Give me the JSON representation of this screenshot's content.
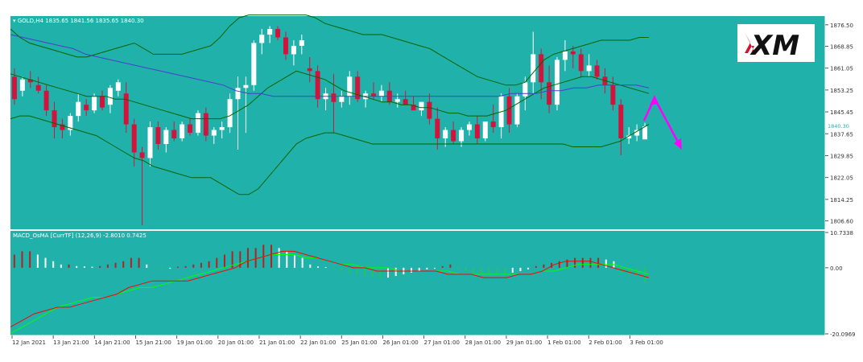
{
  "chart_data": [
    {
      "type": "candlestick",
      "title": "GOLD,H4",
      "ohlc_header": "1835.65 1841.56 1835.65 1840.30",
      "current_price_label": "1840.30",
      "y_ticks": [
        "1876.50",
        "1868.85",
        "1861.05",
        "1853.25",
        "1845.45",
        "1837.65",
        "1829.85",
        "1822.05",
        "1814.25",
        "1806.60"
      ],
      "ylim": [
        1803.6,
        1879.6
      ],
      "x_tick_labels": [
        "12 Jan 2021",
        "13 Jan 21:00",
        "14 Jan 21:00",
        "15 Jan 21:00",
        "19 Jan 01:00",
        "20 Jan 01:00",
        "21 Jan 01:00",
        "22 Jan 01:00",
        "25 Jan 01:00",
        "26 Jan 01:00",
        "27 Jan 01:00",
        "28 Jan 01:00",
        "29 Jan 01:00",
        "1 Feb 01:00",
        "2 Feb 01:00",
        "3 Feb 01:00"
      ],
      "indicator": "Bollinger Bands + moving average",
      "forecast_arrow": "up then down (magenta)",
      "colors": {
        "background": "#20b2aa",
        "bull": "#ffffff",
        "bear": "#d2143c",
        "band": "#006400",
        "ma": "#4b3ccc",
        "arrow": "#ff00ff"
      },
      "candles": [
        [
          1858,
          1861,
          1848,
          1850
        ],
        [
          1853,
          1858,
          1851,
          1857
        ],
        [
          1857,
          1860,
          1854,
          1856
        ],
        [
          1855,
          1858,
          1852,
          1853
        ],
        [
          1853,
          1855,
          1844,
          1846
        ],
        [
          1846,
          1849,
          1836,
          1840
        ],
        [
          1841,
          1843,
          1836,
          1839
        ],
        [
          1839,
          1845,
          1837,
          1844
        ],
        [
          1844,
          1852,
          1842,
          1849
        ],
        [
          1848,
          1850,
          1844,
          1846
        ],
        [
          1846,
          1852,
          1845,
          1851
        ],
        [
          1851,
          1853,
          1846,
          1847
        ],
        [
          1848,
          1855,
          1845,
          1854
        ],
        [
          1853,
          1857,
          1851,
          1856
        ],
        [
          1852,
          1856,
          1838,
          1841
        ],
        [
          1841,
          1843,
          1826,
          1831
        ],
        [
          1831,
          1833,
          1805,
          1829
        ],
        [
          1829,
          1842,
          1826,
          1840
        ],
        [
          1840,
          1842,
          1832,
          1834
        ],
        [
          1834,
          1840,
          1831,
          1839
        ],
        [
          1839,
          1842,
          1835,
          1836
        ],
        [
          1836,
          1842,
          1835,
          1841
        ],
        [
          1841,
          1843,
          1837,
          1838
        ],
        [
          1838,
          1846,
          1837,
          1845
        ],
        [
          1845,
          1847,
          1835,
          1837
        ],
        [
          1837,
          1840,
          1834,
          1839
        ],
        [
          1839,
          1842,
          1836,
          1840
        ],
        [
          1840,
          1852,
          1838,
          1850
        ],
        [
          1850,
          1858,
          1832,
          1854
        ],
        [
          1854,
          1858,
          1838,
          1855
        ],
        [
          1855,
          1871,
          1853,
          1870
        ],
        [
          1870,
          1875,
          1866,
          1873
        ],
        [
          1873,
          1876,
          1870,
          1875
        ],
        [
          1875,
          1876,
          1871,
          1872
        ],
        [
          1872,
          1874,
          1864,
          1866
        ],
        [
          1866,
          1871,
          1862,
          1869
        ],
        [
          1869,
          1873,
          1866,
          1871
        ],
        [
          1861,
          1865,
          1856,
          1860
        ],
        [
          1860,
          1862,
          1847,
          1850
        ],
        [
          1850,
          1854,
          1846,
          1852
        ],
        [
          1852,
          1859,
          1838,
          1849
        ],
        [
          1849,
          1853,
          1847,
          1851
        ],
        [
          1851,
          1860,
          1848,
          1858
        ],
        [
          1858,
          1860,
          1849,
          1850
        ],
        [
          1850,
          1853,
          1847,
          1852
        ],
        [
          1852,
          1856,
          1850,
          1851
        ],
        [
          1851,
          1855,
          1849,
          1853
        ],
        [
          1853,
          1856,
          1848,
          1849
        ],
        [
          1849,
          1852,
          1847,
          1850
        ],
        [
          1850,
          1853,
          1848,
          1848
        ],
        [
          1848,
          1851,
          1846,
          1846
        ],
        [
          1846,
          1849,
          1844,
          1849
        ],
        [
          1849,
          1852,
          1841,
          1843
        ],
        [
          1843,
          1847,
          1832,
          1836
        ],
        [
          1836,
          1840,
          1833,
          1839
        ],
        [
          1839,
          1842,
          1834,
          1835
        ],
        [
          1835,
          1840,
          1833,
          1839
        ],
        [
          1839,
          1842,
          1837,
          1841
        ],
        [
          1841,
          1844,
          1834,
          1836
        ],
        [
          1836,
          1842,
          1835,
          1842
        ],
        [
          1842,
          1848,
          1838,
          1840
        ],
        [
          1840,
          1852,
          1836,
          1851
        ],
        [
          1851,
          1854,
          1838,
          1841
        ],
        [
          1841,
          1852,
          1840,
          1851
        ],
        [
          1851,
          1858,
          1846,
          1856
        ],
        [
          1856,
          1874,
          1852,
          1866
        ],
        [
          1866,
          1868,
          1850,
          1856
        ],
        [
          1856,
          1862,
          1845,
          1848
        ],
        [
          1848,
          1865,
          1846,
          1864
        ],
        [
          1864,
          1871,
          1860,
          1867
        ],
        [
          1867,
          1869,
          1861,
          1866
        ],
        [
          1866,
          1868,
          1858,
          1860
        ],
        [
          1860,
          1866,
          1858,
          1862
        ],
        [
          1862,
          1864,
          1857,
          1858
        ],
        [
          1858,
          1861,
          1852,
          1855
        ],
        [
          1855,
          1858,
          1846,
          1848
        ],
        [
          1848,
          1850,
          1830,
          1836
        ],
        [
          1836,
          1840,
          1834,
          1837
        ],
        [
          1837,
          1841,
          1835,
          1839
        ],
        [
          1835.65,
          1841.56,
          1835.65,
          1840.3
        ]
      ],
      "upper_band": [
        1875,
        1872,
        1870,
        1869,
        1868,
        1867,
        1866,
        1865,
        1865,
        1866,
        1867,
        1868,
        1869,
        1870,
        1868,
        1866,
        1866,
        1866,
        1866,
        1867,
        1868,
        1869,
        1872,
        1876,
        1879,
        1880,
        1880,
        1880,
        1880,
        1880,
        1880,
        1880,
        1879,
        1877,
        1876,
        1875,
        1874,
        1873,
        1873,
        1873,
        1872,
        1871,
        1870,
        1869,
        1868,
        1866,
        1864,
        1862,
        1860,
        1858,
        1857,
        1856,
        1855,
        1855,
        1856,
        1860,
        1864,
        1866,
        1867,
        1868,
        1869,
        1870,
        1871,
        1871,
        1871,
        1871,
        1872,
        1872
      ],
      "middle_band": [
        1859,
        1858,
        1857,
        1856,
        1855,
        1854,
        1853,
        1852,
        1851,
        1851,
        1851,
        1850,
        1850,
        1849,
        1848,
        1847,
        1846,
        1845,
        1844,
        1843,
        1843,
        1843,
        1843,
        1844,
        1846,
        1848,
        1851,
        1854,
        1856,
        1858,
        1860,
        1859,
        1858,
        1857,
        1855,
        1853,
        1852,
        1851,
        1850,
        1849,
        1849,
        1848,
        1848,
        1847,
        1847,
        1846,
        1845,
        1845,
        1844,
        1844,
        1844,
        1845,
        1846,
        1848,
        1850,
        1852,
        1854,
        1855,
        1856,
        1857,
        1858,
        1858,
        1857,
        1856,
        1855,
        1854,
        1853,
        1852
      ],
      "lower_band": [
        1843,
        1844,
        1844,
        1843,
        1842,
        1841,
        1840,
        1839,
        1838,
        1837,
        1835,
        1833,
        1831,
        1829,
        1828,
        1826,
        1825,
        1824,
        1823,
        1822,
        1822,
        1822,
        1820,
        1818,
        1816,
        1816,
        1818,
        1822,
        1826,
        1830,
        1834,
        1836,
        1837,
        1838,
        1838,
        1837,
        1836,
        1835,
        1834,
        1834,
        1834,
        1834,
        1834,
        1834,
        1834,
        1834,
        1834,
        1834,
        1834,
        1834,
        1834,
        1834,
        1834,
        1834,
        1834,
        1834,
        1834,
        1834,
        1834,
        1833,
        1833,
        1833,
        1833,
        1834,
        1835,
        1837,
        1839,
        1841
      ],
      "ma_line": [
        1873,
        1872,
        1871,
        1870,
        1869,
        1868,
        1866,
        1865,
        1864,
        1863,
        1862,
        1861,
        1860,
        1859,
        1858,
        1857,
        1856,
        1855,
        1853,
        1852,
        1852,
        1851,
        1851,
        1851,
        1851,
        1851,
        1851,
        1851,
        1851,
        1851,
        1851,
        1851,
        1851,
        1851,
        1851,
        1851,
        1851,
        1851,
        1851,
        1851,
        1852,
        1852,
        1852,
        1853,
        1853,
        1854,
        1854,
        1855,
        1855,
        1855,
        1855,
        1854
      ]
    },
    {
      "type": "histogram+line",
      "title": "MACD_OsMA [CurrTF] (12,26,9) -2.8010 0.7425",
      "y_ticks": [
        "10.7338",
        "0.00",
        "-20.0969"
      ],
      "ylim": [
        -20.0969,
        10.7338
      ],
      "histogram": [
        4,
        5,
        5,
        4,
        3,
        2,
        1,
        1,
        0.5,
        0.4,
        0.3,
        0.5,
        1,
        1.5,
        2,
        3,
        3,
        1,
        -0.3,
        -0.5,
        -0.3,
        0.3,
        0.5,
        1,
        1.5,
        2,
        3,
        4,
        5,
        5,
        6,
        6,
        7,
        7,
        6,
        5,
        4,
        3,
        1,
        0.4,
        0.2,
        -0.5,
        -1,
        -1.5,
        -2,
        -2.5,
        -3,
        -3.3,
        -3,
        -2.5,
        -2,
        -1.5,
        -1,
        -0.5,
        -0.3,
        0.5,
        1,
        -0.5,
        -1,
        -1.5,
        -2,
        -2,
        -2,
        -2,
        -1.5,
        -1,
        -0.5,
        0.5,
        1,
        1.5,
        2,
        2.5,
        3,
        3,
        3,
        3,
        2.5,
        2,
        -2,
        -2.5,
        -3,
        -4.5
      ],
      "histogram_colors": "red, white, green, greenyellow",
      "macd_line": [
        -18,
        -16,
        -14,
        -13,
        -12,
        -12,
        -11,
        -10,
        -9,
        -8,
        -6,
        -5,
        -4,
        -4,
        -4,
        -4,
        -3,
        -2,
        -1,
        0,
        2,
        3,
        4,
        5,
        5,
        4,
        3,
        2,
        1,
        0,
        0,
        -1,
        -1,
        -1,
        -1,
        -1,
        -1,
        -2,
        -2,
        -2,
        -3,
        -3,
        -3,
        -2,
        -2,
        -1,
        1,
        2,
        2,
        2,
        1,
        0,
        -1,
        -2,
        -3
      ],
      "signal_line": [
        -20,
        -18,
        -16,
        -14,
        -12,
        -11,
        -10,
        -9,
        -9,
        -8,
        -7,
        -6,
        -6,
        -5,
        -4,
        -3,
        -2,
        -1,
        0,
        1,
        2,
        3,
        4,
        4,
        4,
        3,
        3,
        2,
        1,
        1,
        0,
        0,
        0,
        -1,
        -1,
        -1,
        -1,
        -1,
        -2,
        -2,
        -2,
        -2,
        -2,
        -2,
        -2,
        -1,
        -1,
        0,
        1,
        1,
        1,
        1,
        0,
        -1,
        -2
      ],
      "colors": {
        "macd": "#ff0000",
        "signal": "#00ff00"
      }
    }
  ],
  "logo": {
    "text": "XM"
  }
}
